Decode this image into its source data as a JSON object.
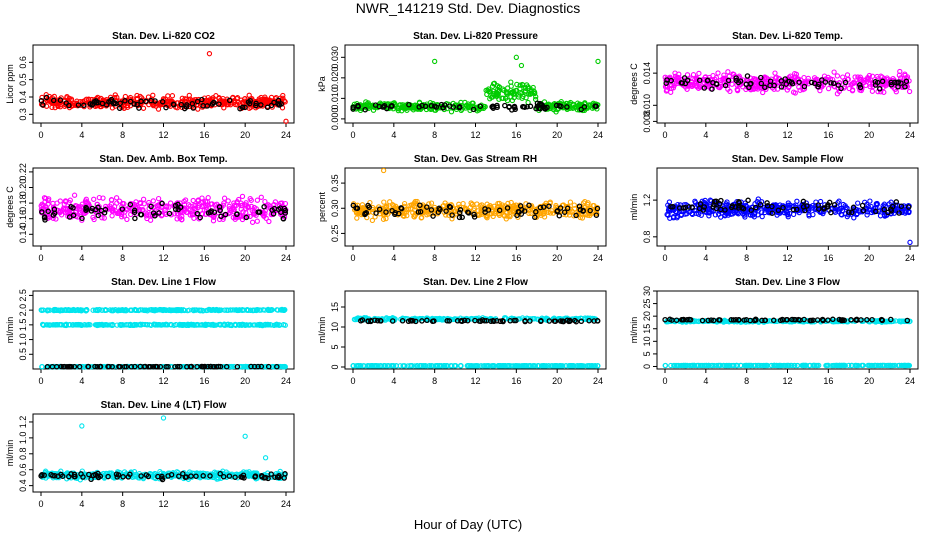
{
  "title": "NWR_141219  Std. Dev. Diagnostics",
  "xlabel": "Hour of Day (UTC)",
  "x_ticks": [
    "0",
    "4",
    "8",
    "12",
    "16",
    "20",
    "24"
  ],
  "colors": {
    "black": "#000000",
    "red": "#ff0000",
    "green": "#00cc00",
    "magenta": "#ff00ff",
    "orange": "#ffa500",
    "blue": "#0000ff",
    "cyan": "#00e5ee"
  },
  "chart_data": [
    {
      "type": "scatter",
      "title": "Stan. Dev. Li-820 CO2",
      "ylabel": "Licor ppm",
      "xlim": [
        0,
        24
      ],
      "ylim": [
        0.25,
        0.7
      ],
      "y_ticks": [
        "0.3",
        "0.4",
        "0.5",
        "0.6"
      ],
      "color": "#ff0000",
      "series": [
        {
          "name": "main",
          "center": 0.37,
          "spread": 0.05,
          "outliers": [
            [
              16.5,
              0.65
            ],
            [
              24,
              0.26
            ]
          ]
        },
        {
          "name": "black",
          "center": 0.36,
          "spread": 0.04
        }
      ]
    },
    {
      "type": "scatter",
      "title": "Stan. Dev. Li-820 Pressure",
      "ylabel": "kPa",
      "xlim": [
        0,
        24
      ],
      "ylim": [
        -0.002,
        0.036
      ],
      "y_ticks": [
        "0.000",
        "0.010",
        "0.020",
        "0.030"
      ],
      "color": "#00cc00",
      "series": [
        {
          "name": "main",
          "center": 0.006,
          "spread": 0.003,
          "outliers": [
            [
              8,
              0.028
            ],
            [
              16,
              0.03
            ],
            [
              24,
              0.028
            ],
            [
              16.5,
              0.026
            ]
          ]
        },
        {
          "name": "black",
          "center": 0.006,
          "spread": 0.002
        }
      ]
    },
    {
      "type": "scatter",
      "title": "Stan. Dev. Li-820 Temp.",
      "ylabel": "degrees C",
      "xlim": [
        0,
        24
      ],
      "ylim": [
        0.0078,
        0.0175
      ],
      "y_ticks": [
        "0.008",
        "0.010",
        "0.014"
      ],
      "color": "#ff00ff",
      "series": [
        {
          "name": "main",
          "center": 0.0128,
          "spread": 0.0016
        },
        {
          "name": "black",
          "center": 0.0128,
          "spread": 0.0012
        }
      ]
    },
    {
      "type": "scatter",
      "title": "Stan. Dev. Amb. Box Temp.",
      "ylabel": "degrees C",
      "xlim": [
        0,
        24
      ],
      "ylim": [
        0.125,
        0.225
      ],
      "y_ticks": [
        "0.14",
        "0.16",
        "0.18",
        "0.20",
        "0.22"
      ],
      "color": "#ff00ff",
      "series": [
        {
          "name": "main",
          "center": 0.172,
          "spread": 0.02
        },
        {
          "name": "black",
          "center": 0.168,
          "spread": 0.015
        }
      ]
    },
    {
      "type": "scatter",
      "title": "Stan. Dev. Gas Stream RH",
      "ylabel": "percent",
      "xlim": [
        0,
        24
      ],
      "ylim": [
        0.225,
        0.38
      ],
      "y_ticks": [
        "0.25",
        "0.30",
        "0.35"
      ],
      "color": "#ffa500",
      "series": [
        {
          "name": "main",
          "center": 0.296,
          "spread": 0.022,
          "outliers": [
            [
              3,
              0.375
            ]
          ]
        },
        {
          "name": "black",
          "center": 0.295,
          "spread": 0.018
        }
      ]
    },
    {
      "type": "scatter",
      "title": "Stan. Dev. Sample Flow",
      "ylabel": "ml/min",
      "xlim": [
        0,
        24
      ],
      "ylim": [
        0.7,
        1.55
      ],
      "y_ticks": [
        "0.8",
        "1.2"
      ],
      "color": "#0000ff",
      "series": [
        {
          "name": "main",
          "center": 1.1,
          "spread": 0.12,
          "outliers": [
            [
              24,
              0.74
            ]
          ]
        },
        {
          "name": "black",
          "center": 1.12,
          "spread": 0.1
        }
      ]
    },
    {
      "type": "scatter",
      "title": "Stan. Dev. Line 1 Flow",
      "ylabel": "ml/min",
      "xlim": [
        0,
        24
      ],
      "ylim": [
        0.0,
        2.65
      ],
      "y_ticks": [
        "0.5",
        "1.0",
        "1.5",
        "2.0",
        "2.5"
      ],
      "color": "#00e5ee",
      "series": [
        {
          "name": "band-high",
          "center": 2.0,
          "spread": 0.03
        },
        {
          "name": "band-mid",
          "center": 1.5,
          "spread": 0.03
        },
        {
          "name": "band-low",
          "center": 0.08,
          "spread": 0.01
        },
        {
          "name": "black",
          "center": 0.08,
          "spread": 0.01
        }
      ]
    },
    {
      "type": "scatter",
      "title": "Stan. Dev. Line 2 Flow",
      "ylabel": "ml/min",
      "xlim": [
        0,
        24
      ],
      "ylim": [
        -0.5,
        19
      ],
      "y_ticks": [
        "0",
        "5",
        "10",
        "15"
      ],
      "color": "#00e5ee",
      "series": [
        {
          "name": "band-high",
          "center": 12,
          "spread": 0.4
        },
        {
          "name": "band-low",
          "center": 0.3,
          "spread": 0.05
        },
        {
          "name": "black",
          "center": 11.5,
          "spread": 0.3
        }
      ]
    },
    {
      "type": "scatter",
      "title": "Stan. Dev. Line 3 Flow",
      "ylabel": "ml/min",
      "xlim": [
        0,
        24
      ],
      "ylim": [
        -1,
        30
      ],
      "y_ticks": [
        "0",
        "5",
        "10",
        "15",
        "20",
        "25",
        "30"
      ],
      "color": "#00e5ee",
      "series": [
        {
          "name": "band-high",
          "center": 18,
          "spread": 0.5
        },
        {
          "name": "band-low",
          "center": 0.4,
          "spread": 0.05
        },
        {
          "name": "black",
          "center": 18.5,
          "spread": 0.4
        }
      ]
    },
    {
      "type": "scatter",
      "title": "Stan. Dev. Line 4 (LT) Flow",
      "ylabel": "ml/min",
      "xlim": [
        0,
        24
      ],
      "ylim": [
        0.32,
        1.3
      ],
      "y_ticks": [
        "0.4",
        "0.6",
        "0.8",
        "1.0",
        "1.2"
      ],
      "color": "#00e5ee",
      "series": [
        {
          "name": "main",
          "center": 0.53,
          "spread": 0.06,
          "outliers": [
            [
              4,
              1.15
            ],
            [
              12,
              1.25
            ],
            [
              20,
              1.02
            ],
            [
              22,
              0.75
            ]
          ]
        },
        {
          "name": "black",
          "center": 0.52,
          "spread": 0.05
        }
      ]
    }
  ]
}
